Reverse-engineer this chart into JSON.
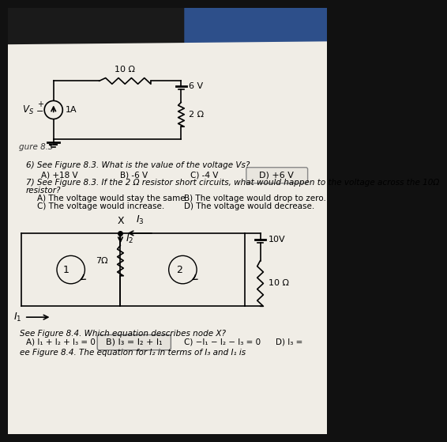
{
  "bg_top_color": "#1a1a1a",
  "bg_blue_color": "#2a4a7a",
  "paper_color": "#f0ede6",
  "text_color": "#1a1a1a",
  "figure_label": "gure 8.3",
  "q6_text": "6) See Figure 8.3. What is the value of the voltage Vs?",
  "q6_a": "A) +18 V",
  "q6_b": "B) -6 V",
  "q6_c": "C) -4 V",
  "q6_d": "D) +6 V",
  "q7_line1": "7) See Figure 8.3. If the 2 Ω resistor short circuits, what would happen to the voltage across the 10Ω",
  "q7_line2": "resistor?",
  "q7_a": "A) The voltage would stay the same.",
  "q7_b": "B) The voltage would drop to zero.",
  "q7_c": "C) The voltage would increase.",
  "q7_d": "D) The voltage would decrease.",
  "q8_line": "See Figure 8.4. Which equation describes node X?",
  "q8_a": "A) I₁ + I₂ + I₃ = 0",
  "q8_b": "B) I₃ = I₂ + I₁",
  "q8_c": "C) −I₁ − I₂ − I₃ = 0",
  "q8_d": "D) I₃ =",
  "q9_text": "ee Figure 8.4. The equation for I₂ in terms of I₃ and I₁ is"
}
